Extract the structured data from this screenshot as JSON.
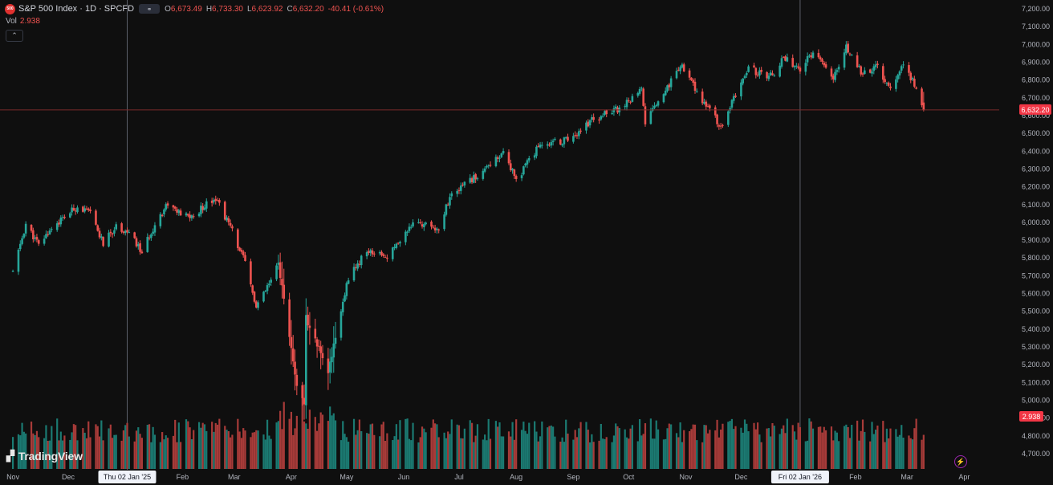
{
  "header": {
    "symbol": "S&P 500 Index · 1D · SPCFD",
    "logo_text": "500",
    "open_label": "O",
    "open": "6,673.49",
    "high_label": "H",
    "high": "6,733.30",
    "low_label": "L",
    "low": "6,623.92",
    "close_label": "C",
    "close": "6,632.20",
    "change": "-40.41 (-0.61%)"
  },
  "volume": {
    "label": "Vol",
    "value": "2.938"
  },
  "brand": {
    "name": "TradingView"
  },
  "colors": {
    "up": "#26a69a",
    "down": "#ef5350",
    "up_vol": "#1b7a72",
    "down_vol": "#a83b39",
    "price_tag": "#f23645",
    "background": "#0f0f0f"
  },
  "chart_data": {
    "type": "candlestick",
    "title": "S&P 500 Index · 1D · SPCFD",
    "ylim": [
      4650,
      7250
    ],
    "y_ticks": [
      "7,200.00",
      "7,100.00",
      "7,000.00",
      "6,900.00",
      "6,800.00",
      "6,700.00",
      "6,600.00",
      "6,500.00",
      "6,400.00",
      "6,300.00",
      "6,200.00",
      "6,100.00",
      "6,000.00",
      "5,900.00",
      "5,800.00",
      "5,700.00",
      "5,600.00",
      "5,500.00",
      "5,400.00",
      "5,300.00",
      "5,200.00",
      "5,100.00",
      "5,000.00",
      "4,900.00",
      "4,800.00",
      "4,700.00"
    ],
    "x_ticks": [
      "Nov",
      "Dec",
      "Thu 02 Jan '25",
      "Feb",
      "Mar",
      "Apr",
      "May",
      "Jun",
      "Jul",
      "Aug",
      "Sep",
      "Oct",
      "Nov",
      "Dec",
      "Fri 02 Jan '26",
      "Feb",
      "Mar",
      "Apr"
    ],
    "crosshair_labels": [
      "Thu 02 Jan '25",
      "Fri 02 Jan '26"
    ],
    "last_price": "6,632.20",
    "last_price_value": 6632.2,
    "last_volume": "2.938",
    "price_path": [
      {
        "date": "2024-11-01",
        "close": 5720
      },
      {
        "date": "2024-11-08",
        "close": 5990
      },
      {
        "date": "2024-11-15",
        "close": 5870
      },
      {
        "date": "2024-11-22",
        "close": 5970
      },
      {
        "date": "2024-11-29",
        "close": 6030
      },
      {
        "date": "2024-12-06",
        "close": 6090
      },
      {
        "date": "2024-12-13",
        "close": 6050
      },
      {
        "date": "2024-12-20",
        "close": 5880
      },
      {
        "date": "2024-12-27",
        "close": 5980
      },
      {
        "date": "2025-01-03",
        "close": 5940
      },
      {
        "date": "2025-01-10",
        "close": 5830
      },
      {
        "date": "2025-01-17",
        "close": 5990
      },
      {
        "date": "2025-01-24",
        "close": 6110
      },
      {
        "date": "2025-01-31",
        "close": 6040
      },
      {
        "date": "2025-02-07",
        "close": 6030
      },
      {
        "date": "2025-02-14",
        "close": 6110
      },
      {
        "date": "2025-02-19",
        "close": 6140
      },
      {
        "date": "2025-02-28",
        "close": 5950
      },
      {
        "date": "2025-03-07",
        "close": 5770
      },
      {
        "date": "2025-03-13",
        "close": 5520
      },
      {
        "date": "2025-03-21",
        "close": 5670
      },
      {
        "date": "2025-03-25",
        "close": 5770
      },
      {
        "date": "2025-04-04",
        "close": 5070
      },
      {
        "date": "2025-04-08",
        "close": 4980
      },
      {
        "date": "2025-04-09",
        "close": 5460
      },
      {
        "date": "2025-04-21",
        "close": 5160
      },
      {
        "date": "2025-05-02",
        "close": 5690
      },
      {
        "date": "2025-05-12",
        "close": 5840
      },
      {
        "date": "2025-05-23",
        "close": 5800
      },
      {
        "date": "2025-06-06",
        "close": 6000
      },
      {
        "date": "2025-06-20",
        "close": 5970
      },
      {
        "date": "2025-06-27",
        "close": 6170
      },
      {
        "date": "2025-07-11",
        "close": 6260
      },
      {
        "date": "2025-07-25",
        "close": 6390
      },
      {
        "date": "2025-08-01",
        "close": 6240
      },
      {
        "date": "2025-08-15",
        "close": 6450
      },
      {
        "date": "2025-08-29",
        "close": 6460
      },
      {
        "date": "2025-09-12",
        "close": 6580
      },
      {
        "date": "2025-09-26",
        "close": 6640
      },
      {
        "date": "2025-10-08",
        "close": 6750
      },
      {
        "date": "2025-10-10",
        "close": 6560
      },
      {
        "date": "2025-10-24",
        "close": 6790
      },
      {
        "date": "2025-10-29",
        "close": 6890
      },
      {
        "date": "2025-11-07",
        "close": 6730
      },
      {
        "date": "2025-11-20",
        "close": 6540
      },
      {
        "date": "2025-12-05",
        "close": 6870
      },
      {
        "date": "2025-12-12",
        "close": 6830
      },
      {
        "date": "2025-12-19",
        "close": 6820
      },
      {
        "date": "2025-12-24",
        "close": 6930
      },
      {
        "date": "2026-01-02",
        "close": 6860
      },
      {
        "date": "2026-01-09",
        "close": 6960
      },
      {
        "date": "2026-01-20",
        "close": 6800
      },
      {
        "date": "2026-01-27",
        "close": 6980
      },
      {
        "date": "2026-02-05",
        "close": 6830
      },
      {
        "date": "2026-02-12",
        "close": 6880
      },
      {
        "date": "2026-02-20",
        "close": 6760
      },
      {
        "date": "2026-02-27",
        "close": 6880
      },
      {
        "date": "2026-03-06",
        "close": 6760
      },
      {
        "date": "2026-03-10",
        "close": 6632
      }
    ]
  }
}
